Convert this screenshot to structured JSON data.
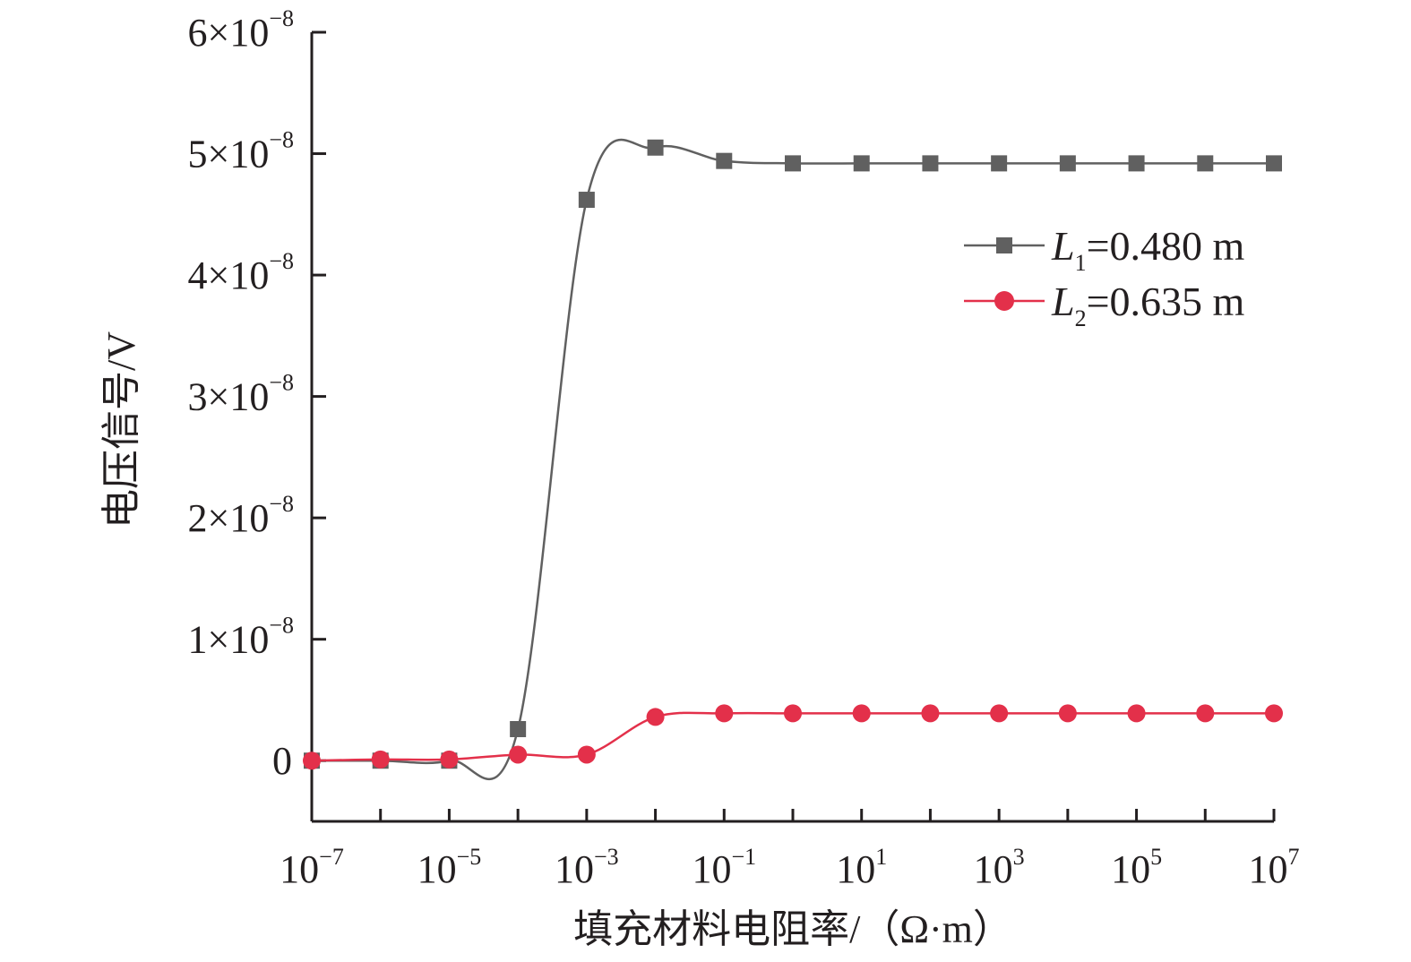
{
  "chart_data": {
    "type": "line",
    "title": "",
    "xlabel": "填充材料电阻率/（Ω·m）",
    "ylabel": "电压信号/V",
    "xscale": "log10",
    "xlim_log10": [
      -7,
      7
    ],
    "ylim": [
      -5e-09,
      6e-08
    ],
    "grid": false,
    "legend_position": "right-upper",
    "x_ticks": [
      {
        "log": -7,
        "base": "10",
        "exp": "−7"
      },
      {
        "log": -5,
        "base": "10",
        "exp": "−5"
      },
      {
        "log": -3,
        "base": "10",
        "exp": "−3"
      },
      {
        "log": -1,
        "base": "10",
        "exp": "−1"
      },
      {
        "log": 1,
        "base": "10",
        "exp": "1"
      },
      {
        "log": 3,
        "base": "10",
        "exp": "3"
      },
      {
        "log": 5,
        "base": "10",
        "exp": "5"
      },
      {
        "log": 7,
        "base": "10",
        "exp": "7"
      }
    ],
    "y_ticks": [
      {
        "value": 0,
        "base": "0",
        "exp": ""
      },
      {
        "value": 1e-08,
        "base": "1×10",
        "exp": "−8"
      },
      {
        "value": 2e-08,
        "base": "2×10",
        "exp": "−8"
      },
      {
        "value": 3e-08,
        "base": "3×10",
        "exp": "−8"
      },
      {
        "value": 4e-08,
        "base": "4×10",
        "exp": "−8"
      },
      {
        "value": 5e-08,
        "base": "5×10",
        "exp": "−8"
      },
      {
        "value": 6e-08,
        "base": "6×10",
        "exp": "−8"
      }
    ],
    "x_log10": [
      -7,
      -6,
      -5,
      -4,
      -3,
      -2,
      -1,
      0,
      1,
      2,
      3,
      4,
      5,
      6,
      7
    ],
    "series": [
      {
        "name_italic": "L",
        "name_sub": "1",
        "name_rest": "=0.480 m",
        "marker": "square",
        "color": "#606060",
        "values": [
          0,
          0,
          0,
          2.6e-09,
          4.62e-08,
          5.05e-08,
          4.94e-08,
          4.92e-08,
          4.92e-08,
          4.92e-08,
          4.92e-08,
          4.92e-08,
          4.92e-08,
          4.92e-08,
          4.92e-08
        ]
      },
      {
        "name_italic": "L",
        "name_sub": "2",
        "name_rest": "=0.635 m",
        "marker": "circle",
        "color": "#e3304a",
        "values": [
          0,
          1e-10,
          1e-10,
          5e-10,
          5e-10,
          3.6e-09,
          3.9e-09,
          3.9e-09,
          3.9e-09,
          3.9e-09,
          3.9e-09,
          3.9e-09,
          3.9e-09,
          3.9e-09,
          3.9e-09
        ]
      }
    ]
  }
}
